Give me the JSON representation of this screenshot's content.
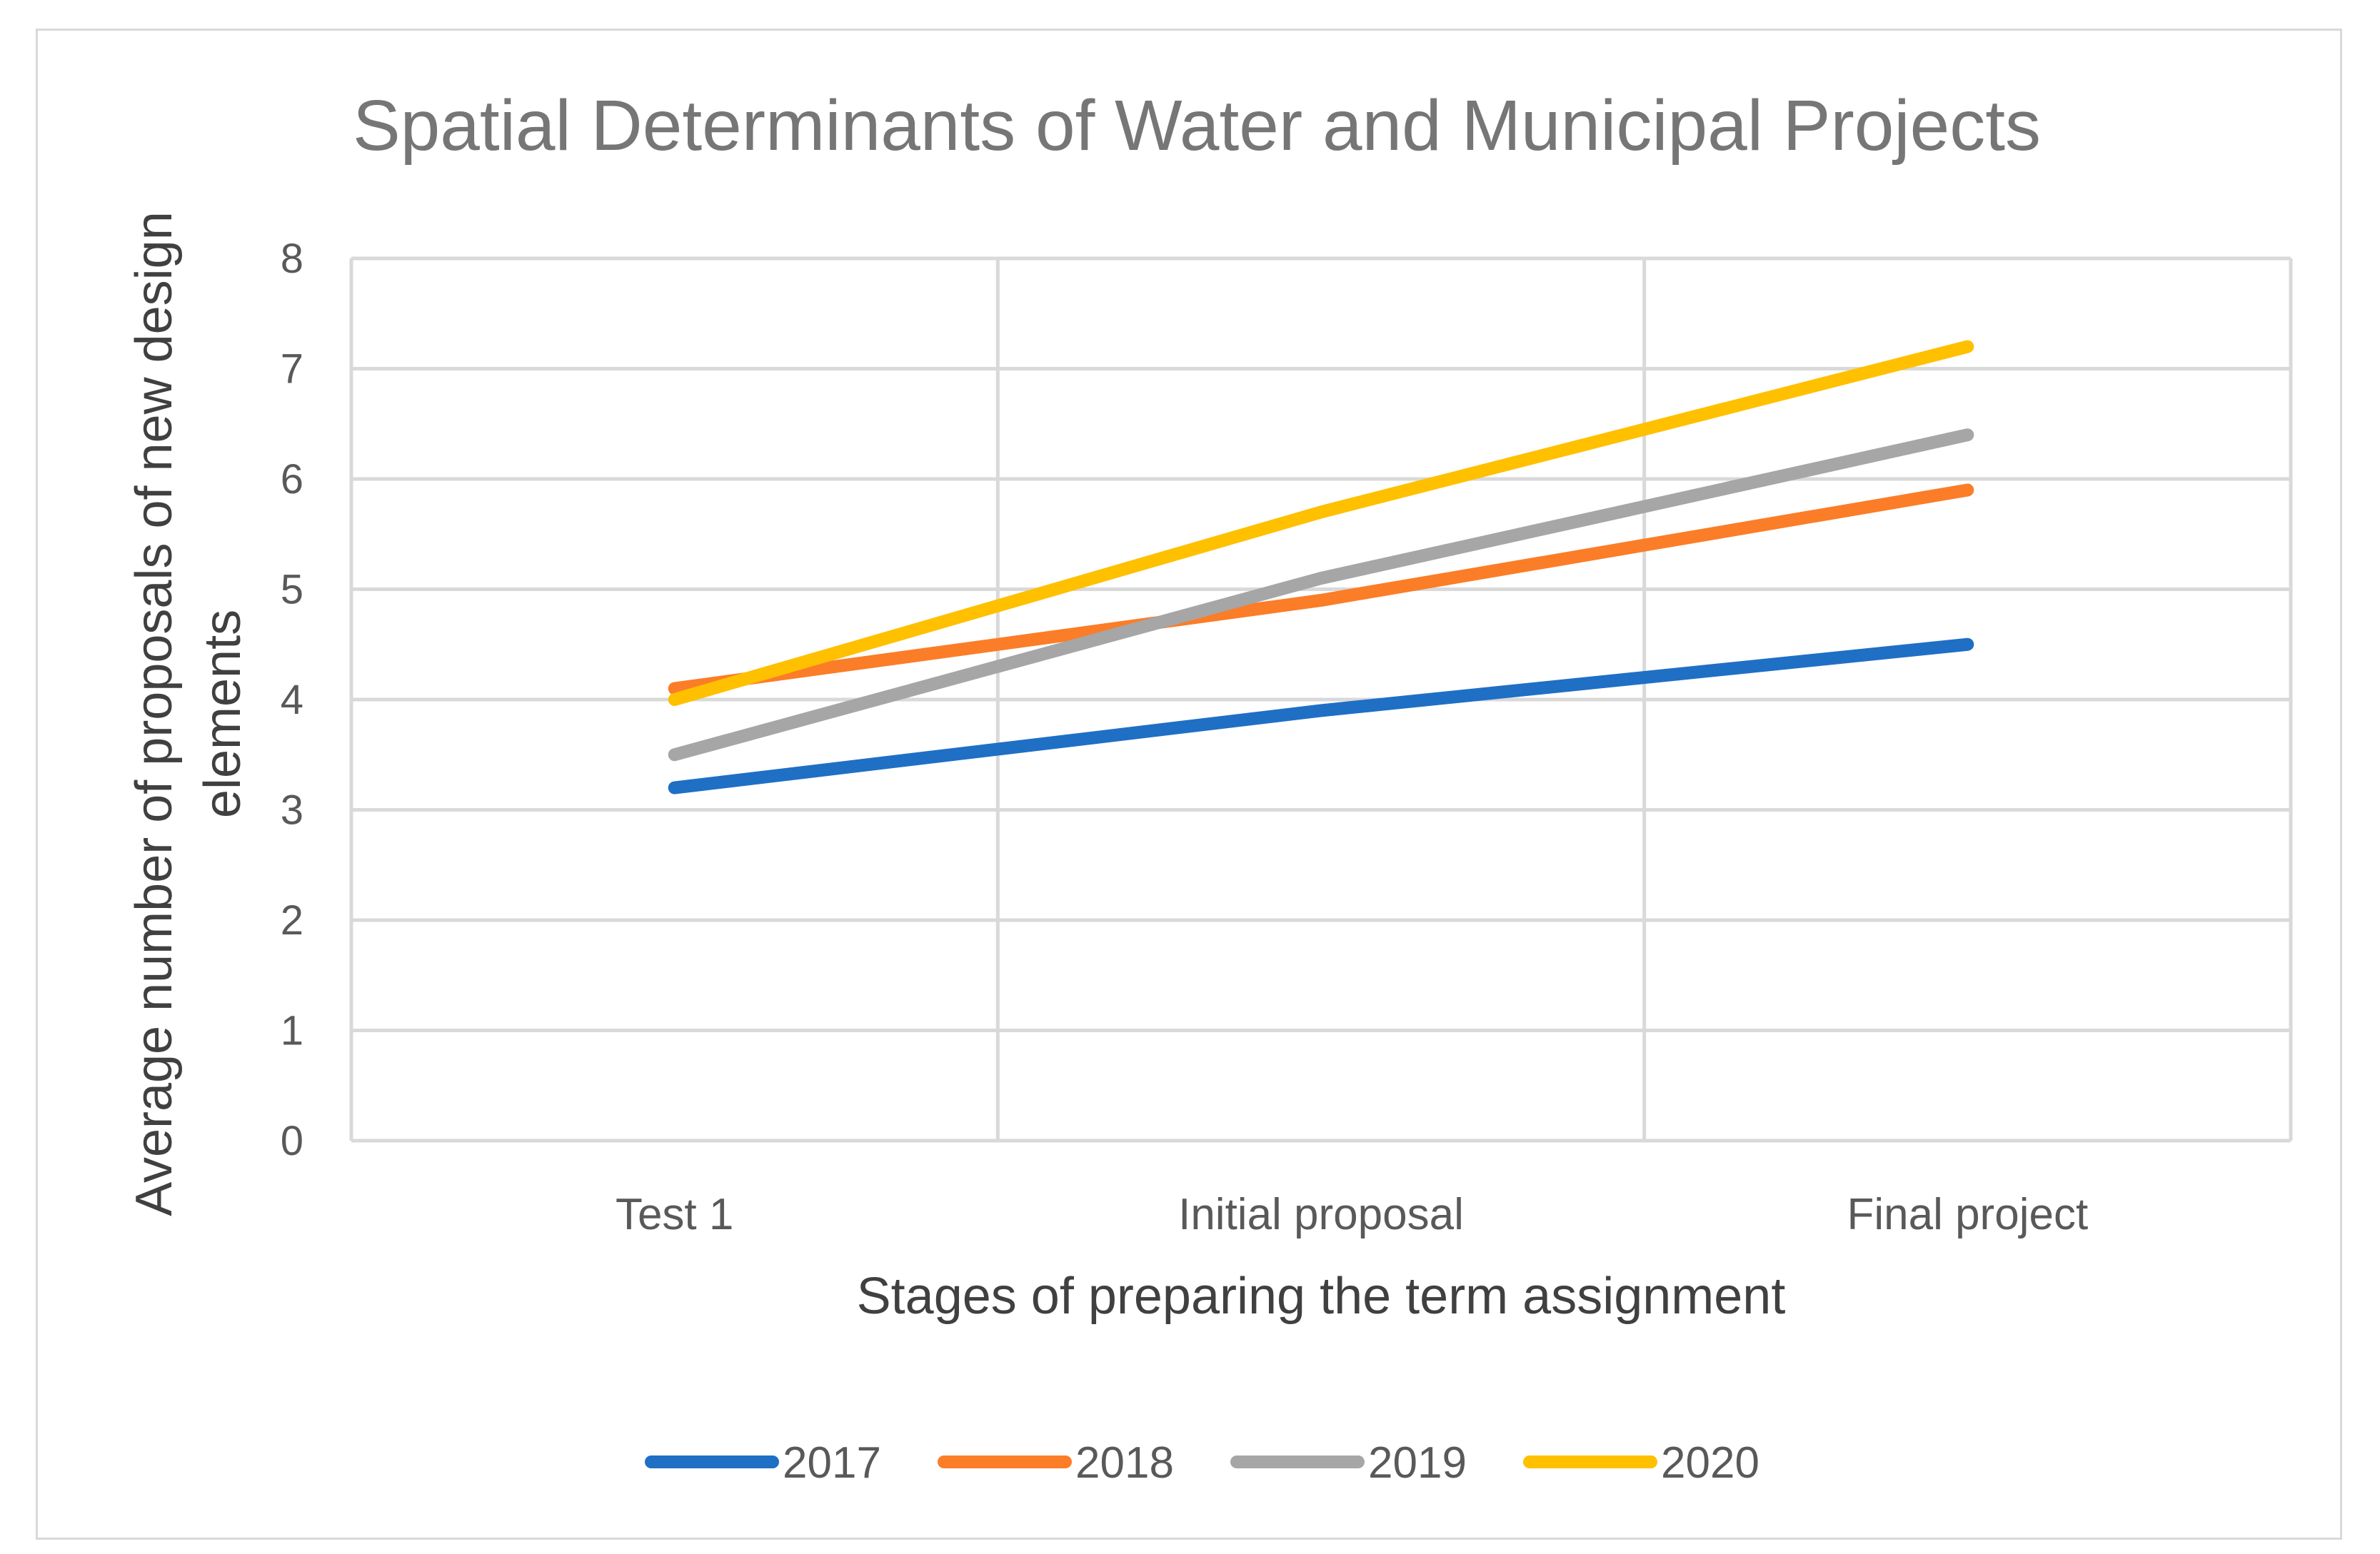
{
  "chart_data": {
    "type": "line",
    "title": "Spatial Determinants of Water and Municipal Projects",
    "xlabel": "Stages of preparing the term assignment",
    "ylabel": "Average number of proposals of new design elements",
    "categories": [
      "Test 1",
      "Initial proposal",
      "Final project"
    ],
    "ylim": [
      0,
      8
    ],
    "yticks": [
      0,
      1,
      2,
      3,
      4,
      5,
      6,
      7,
      8
    ],
    "ytick_labels": [
      "0",
      "1",
      "2",
      "3",
      "4",
      "5",
      "6",
      "7",
      "8"
    ],
    "grid": true,
    "legend_position": "bottom",
    "series": [
      {
        "name": "2017",
        "color": "#1f6fc5",
        "values": [
          3.2,
          3.9,
          4.5
        ]
      },
      {
        "name": "2018",
        "color": "#fb7d28",
        "values": [
          4.1,
          4.9,
          5.9
        ]
      },
      {
        "name": "2019",
        "color": "#a6a6a6",
        "values": [
          3.5,
          5.1,
          6.4
        ]
      },
      {
        "name": "2020",
        "color": "#ffc000",
        "values": [
          4.0,
          5.7,
          7.2
        ]
      }
    ]
  },
  "colors": {
    "gridline": "#d9d9d9",
    "title_text": "#767676",
    "tick_text": "#595959",
    "axis_title_text": "#404040"
  }
}
